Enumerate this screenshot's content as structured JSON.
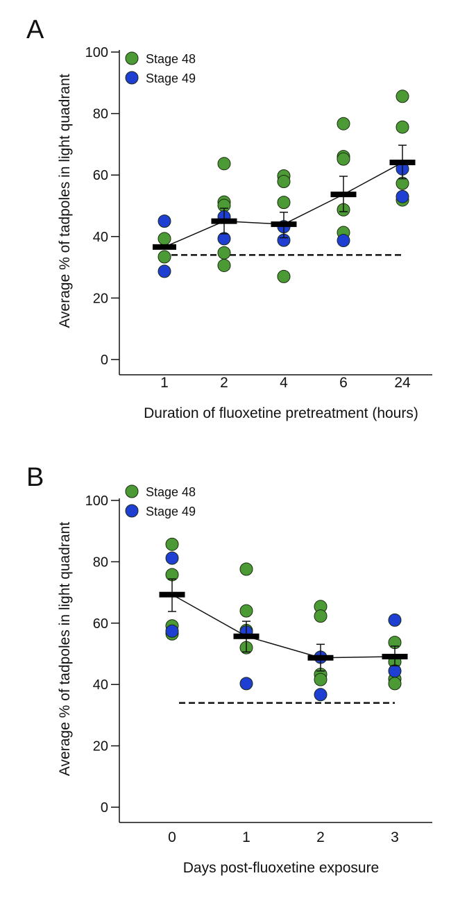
{
  "chart_data": [
    {
      "panel_label": "A",
      "type": "scatter",
      "title": "",
      "xlabel": "Duration of fluoxetine pretreatment (hours)",
      "ylabel": "Average % of tadpoles in light quadrant",
      "categories": [
        "1",
        "2",
        "4",
        "6",
        "24"
      ],
      "yticks": [
        "0",
        "20",
        "40",
        "60",
        "80",
        "100"
      ],
      "ylim": [
        0,
        100
      ],
      "grid": false,
      "legend_position": "top-left",
      "legend": [
        {
          "name": "Stage 48",
          "color": "#4c9a35"
        },
        {
          "name": "Stage 49",
          "color": "#1e3fd2"
        }
      ],
      "series": [
        {
          "name": "Stage 48",
          "points": [
            [
              0,
              39.3
            ],
            [
              0,
              33.4
            ],
            [
              1,
              63.7
            ],
            [
              1,
              51.2
            ],
            [
              1,
              50.1
            ],
            [
              1,
              34.7
            ],
            [
              1,
              30.6
            ],
            [
              2,
              59.7
            ],
            [
              2,
              57.9
            ],
            [
              2,
              51.1
            ],
            [
              2,
              27.0
            ],
            [
              3,
              76.7
            ],
            [
              3,
              66.0
            ],
            [
              3,
              65.2
            ],
            [
              3,
              48.7
            ],
            [
              3,
              41.3
            ],
            [
              4,
              85.6
            ],
            [
              4,
              75.6
            ],
            [
              4,
              57.3
            ],
            [
              4,
              51.9
            ]
          ]
        },
        {
          "name": "Stage 49",
          "points": [
            [
              0,
              45.0
            ],
            [
              0,
              28.7
            ],
            [
              1,
              46.4
            ],
            [
              1,
              39.3
            ],
            [
              2,
              43.2
            ],
            [
              2,
              38.8
            ],
            [
              3,
              38.7
            ],
            [
              4,
              62.0
            ],
            [
              4,
              53.0
            ]
          ]
        }
      ],
      "mean": [
        36.6,
        45.0,
        44.0,
        53.7,
        64.1
      ],
      "sem_upper": [
        36.6,
        49.2,
        47.9,
        59.6,
        69.7
      ],
      "sem_lower": [
        36.6,
        40.9,
        39.6,
        48.1,
        58.8
      ],
      "baseline": 34
    },
    {
      "panel_label": "B",
      "type": "scatter",
      "title": "",
      "xlabel": "Days post-fluoxetine exposure",
      "ylabel": "Average % of tadpoles in light quadrant",
      "categories": [
        "0",
        "1",
        "2",
        "3"
      ],
      "yticks": [
        "0",
        "20",
        "40",
        "60",
        "80",
        "100"
      ],
      "ylim": [
        0,
        100
      ],
      "grid": false,
      "legend_position": "top-left",
      "legend": [
        {
          "name": "Stage 48",
          "color": "#4c9a35"
        },
        {
          "name": "Stage 49",
          "color": "#1e3fd2"
        }
      ],
      "series": [
        {
          "name": "Stage 48",
          "points": [
            [
              0,
              85.7
            ],
            [
              0,
              75.8
            ],
            [
              0,
              59.1
            ],
            [
              0,
              56.5
            ],
            [
              1,
              77.6
            ],
            [
              1,
              64.0
            ],
            [
              1,
              57.6
            ],
            [
              1,
              52.0
            ],
            [
              2,
              65.4
            ],
            [
              2,
              62.3
            ],
            [
              2,
              43.3
            ],
            [
              2,
              41.6
            ],
            [
              3,
              53.7
            ],
            [
              3,
              47.4
            ],
            [
              3,
              41.8
            ],
            [
              3,
              40.3
            ]
          ]
        },
        {
          "name": "Stage 49",
          "points": [
            [
              0,
              81.2
            ],
            [
              0,
              57.4
            ],
            [
              1,
              57.1
            ],
            [
              1,
              40.3
            ],
            [
              2,
              48.9
            ],
            [
              2,
              36.7
            ],
            [
              3,
              61.0
            ],
            [
              3,
              44.4
            ]
          ]
        }
      ],
      "mean": [
        69.3,
        55.7,
        48.7,
        49.1
      ],
      "sem_upper": [
        74.4,
        60.6,
        53.1,
        52.5
      ],
      "sem_lower": [
        63.8,
        50.6,
        44.4,
        46.1
      ],
      "baseline": 34
    }
  ]
}
